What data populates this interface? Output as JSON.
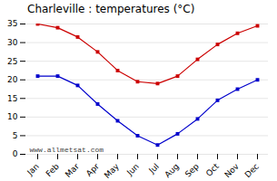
{
  "chart_data": {
    "type": "line",
    "title": "Charleville : temperatures (°C)",
    "categories": [
      "Jan",
      "Feb",
      "Mar",
      "Apr",
      "May",
      "Jun",
      "Jul",
      "Aug",
      "Sep",
      "Oct",
      "Nov",
      "Dec"
    ],
    "series": [
      {
        "color": "#cc0000",
        "values": [
          35,
          34,
          31.5,
          27.5,
          22.5,
          19.5,
          19,
          21,
          25.5,
          29.5,
          32.5,
          34.5
        ]
      },
      {
        "color": "#0000cc",
        "values": [
          21,
          21,
          18.5,
          13.5,
          9,
          5,
          2.5,
          5.5,
          9.5,
          14.5,
          17.5,
          20
        ]
      }
    ],
    "ylim": [
      0,
      35
    ],
    "yticks": [
      0,
      5,
      10,
      15,
      20,
      25,
      30,
      35
    ],
    "grid": true,
    "marker": "square",
    "annotations": [
      "www.allmetsat.com"
    ]
  }
}
